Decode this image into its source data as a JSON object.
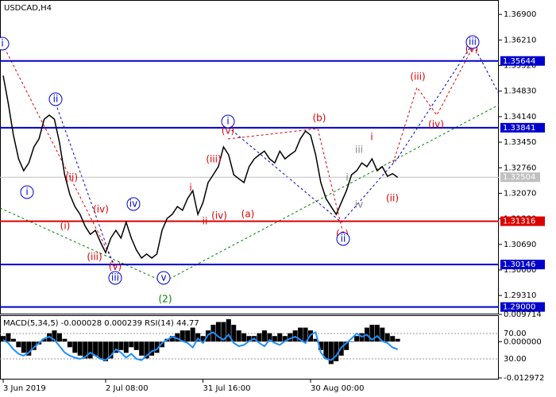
{
  "chart_data": [
    {
      "type": "line",
      "title": "USDCAD,H4",
      "categories": [
        "3 Jun 2019",
        null,
        null,
        null,
        null,
        null,
        null,
        null,
        null,
        null,
        null,
        null,
        null,
        null,
        null,
        null,
        null,
        null,
        null,
        null,
        "2 Jul 08:00",
        null,
        null,
        null,
        null,
        null,
        null,
        null,
        null,
        null,
        null,
        null,
        null,
        null,
        null,
        null,
        null,
        null,
        null,
        "31 Jul 16:00",
        null,
        null,
        null,
        null,
        null,
        null,
        null,
        null,
        null,
        null,
        null,
        null,
        null,
        null,
        null,
        null,
        null,
        null,
        null,
        null,
        "30 Aug 00:00",
        null,
        null,
        null,
        null,
        null,
        null,
        null,
        null,
        null,
        null,
        null,
        null,
        null,
        null,
        null,
        null,
        null
      ],
      "series": [
        {
          "color": "#000000",
          "values": [
            1.3525,
            1.345,
            1.3364,
            1.33,
            1.3268,
            1.3289,
            1.3332,
            1.3354,
            1.3407,
            1.3418,
            1.3407,
            1.3343,
            1.3257,
            1.3204,
            1.3171,
            1.315,
            1.3118,
            1.3096,
            1.3107,
            1.3075,
            1.3047,
            1.3086,
            1.3107,
            1.3086,
            1.3129,
            1.3086,
            1.3054,
            1.3032,
            1.3043,
            1.3032,
            1.3043,
            1.3107,
            1.3139,
            1.315,
            1.3171,
            1.3161,
            1.3193,
            1.3214,
            1.315,
            1.3182,
            1.3236,
            1.3257,
            1.3279,
            1.3332,
            1.3311,
            1.3257,
            1.3246,
            1.3236,
            1.3279,
            1.33,
            1.3311,
            1.3321,
            1.33,
            1.3289,
            1.3321,
            1.33,
            1.3311,
            1.3321,
            1.3354,
            1.3375,
            1.3364,
            1.3311,
            1.3236,
            1.3193,
            1.3171,
            1.315,
            1.3182,
            1.3214,
            1.3257,
            1.3268,
            1.3289,
            1.3279,
            1.33,
            1.3268,
            1.3279,
            1.3253,
            1.326,
            1.325
          ]
        }
      ],
      "ylim": [
        1.2882,
        1.3729
      ],
      "yticks": [
        {
          "value": 1.369,
          "label": "1.36900"
        },
        {
          "value": 1.3621,
          "label": "1.36210"
        },
        {
          "value": 1.3552,
          "label": "1.35520"
        },
        {
          "value": 1.3483,
          "label": "1.34830"
        },
        {
          "value": 1.3414,
          "label": "1.34140"
        },
        {
          "value": 1.3345,
          "label": "1.33450"
        },
        {
          "value": 1.3276,
          "label": "1.32760"
        },
        {
          "value": 1.3207,
          "label": "1.32070"
        },
        {
          "value": 1.3138,
          "label": "1.31380"
        },
        {
          "value": 1.3069,
          "label": "1.30690"
        },
        {
          "value": 1.3,
          "label": "1.30000"
        },
        {
          "value": 1.2931,
          "label": "1.29310"
        }
      ],
      "levels": [
        {
          "value": 1.35644,
          "color": "#0000cc"
        },
        {
          "value": 1.33841,
          "color": "#0000cc"
        },
        {
          "value": 1.31316,
          "color": "#dd0000"
        },
        {
          "value": 1.30146,
          "color": "#0000cc"
        },
        {
          "value": 1.29,
          "label": "1.29000",
          "color": "#0000cc"
        }
      ],
      "current_price": 1.32504,
      "annotations": [
        {
          "text": "i",
          "color": "#0000cc"
        },
        {
          "text": "ii",
          "color": "#0000cc"
        },
        {
          "text": "i",
          "color": "#0000cc"
        },
        {
          "text": "(i)",
          "color": "#dd0000"
        },
        {
          "text": "(ii)",
          "color": "#dd0000"
        },
        {
          "text": "(iv)",
          "color": "#dd0000"
        },
        {
          "text": "(iii)",
          "color": "#dd0000"
        },
        {
          "text": "(v)",
          "color": "#dd0000"
        },
        {
          "text": "iii",
          "color": "#0000cc"
        },
        {
          "text": "iv",
          "color": "#0000cc"
        },
        {
          "text": "v",
          "color": "#0000cc"
        },
        {
          "text": "(2)",
          "color": "#008000"
        },
        {
          "text": "i",
          "color": "#dd0000"
        },
        {
          "text": "ii",
          "color": "#dd0000"
        },
        {
          "text": "(iii)",
          "color": "#dd0000"
        },
        {
          "text": "(iv)",
          "color": "#dd0000"
        },
        {
          "text": "(a)",
          "color": "#dd0000"
        },
        {
          "text": "(v)",
          "color": "#dd0000"
        },
        {
          "text": "i",
          "color": "#0000cc"
        },
        {
          "text": "(b)",
          "color": "#dd0000"
        },
        {
          "text": "(c)",
          "color": "#dd0000"
        },
        {
          "text": "ii",
          "color": "#0000cc"
        },
        {
          "text": "iii",
          "color": "#808080"
        },
        {
          "text": "i",
          "color": "#808080"
        },
        {
          "text": "iv",
          "color": "#808080"
        },
        {
          "text": "i",
          "color": "#dd0000"
        },
        {
          "text": "(ii)",
          "color": "#dd0000"
        },
        {
          "text": "(iii)",
          "color": "#dd0000"
        },
        {
          "text": "(iv)",
          "color": "#dd0000"
        },
        {
          "text": "(v)",
          "color": "#dd0000"
        },
        {
          "text": "iii",
          "color": "#0000cc"
        }
      ]
    },
    {
      "type": "macd-rsi",
      "title": "MACD(5,34,5) -0.000028 0.000239 RSI(14) 44.77",
      "series": [
        {
          "color": "#000000",
          "values": [
            0.002,
            0.003,
            0.001,
            -0.002,
            -0.004,
            -0.005,
            -0.003,
            -0.001,
            0.001,
            0.003,
            0.004,
            0.003,
            0.001,
            -0.002,
            -0.004,
            -0.005,
            -0.006,
            -0.006,
            -0.005,
            -0.006,
            -0.007,
            -0.006,
            -0.004,
            -0.003,
            -0.004,
            -0.002,
            -0.003,
            -0.005,
            -0.006,
            -0.005,
            -0.004,
            -0.002,
            0.001,
            0.002,
            0.003,
            0.004,
            0.004,
            0.005,
            0.003,
            0.002,
            0.004,
            0.006,
            0.007,
            0.007,
            0.008,
            0.006,
            0.004,
            0.003,
            0.002,
            0.002,
            0.003,
            0.004,
            0.003,
            0.002,
            0.003,
            0.002,
            0.003,
            0.004,
            0.005,
            0.005,
            0.004,
            0.001,
            -0.003,
            -0.006,
            -0.008,
            -0.007,
            -0.005,
            -0.003,
            0,
            0.002,
            0.003,
            0.005,
            0.006,
            0.006,
            0.005,
            0.003,
            0.002,
            0.001
          ]
        },
        {
          "color": "#1e90ff",
          "axis": "y2",
          "values": [
            60,
            55,
            45,
            38,
            35,
            40,
            48,
            55,
            62,
            65,
            60,
            50,
            40,
            35,
            32,
            30,
            33,
            40,
            35,
            30,
            28,
            35,
            45,
            40,
            32,
            38,
            30,
            28,
            35,
            42,
            45,
            55,
            60,
            65,
            62,
            58,
            55,
            48,
            62,
            55,
            68,
            72,
            65,
            60,
            68,
            55,
            50,
            52,
            58,
            62,
            55,
            50,
            60,
            55,
            52,
            58,
            62,
            65,
            60,
            55,
            68,
            72,
            40,
            30,
            28,
            35,
            48,
            55,
            62,
            70,
            65,
            68,
            60,
            66,
            58,
            55,
            48,
            45
          ]
        }
      ],
      "ylim": [
        -0.012972,
        0.009714
      ],
      "yticks": [
        0.009714,
        {
          "value": 0,
          "label": "0.000000"
        },
        -0.012972
      ],
      "y2lim": [
        0,
        100
      ],
      "y2ticks": [
        {
          "value": 70,
          "label": "70.00"
        },
        {
          "value": 30,
          "label": "30.00"
        }
      ]
    }
  ]
}
